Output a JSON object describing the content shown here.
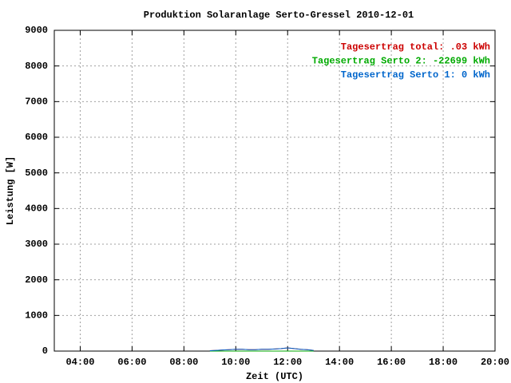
{
  "chart_data": {
    "type": "line",
    "title": "Produktion Solaranlage Serto-Gressel 2010-12-01",
    "x_label": "Zeit (UTC)",
    "y_label": "Leistung [W]",
    "x": [
      9,
      9.25,
      9.5,
      9.75,
      10,
      10.25,
      10.5,
      10.75,
      11,
      11.25,
      11.5,
      11.75,
      12,
      12.25,
      12.5,
      12.75,
      13
    ],
    "series": [
      {
        "name": "Tagesertrag total: .03 kWh",
        "color": "#cc0000",
        "values": [
          10,
          20,
          30,
          40,
          50,
          50,
          40,
          40,
          50,
          50,
          60,
          70,
          90,
          70,
          50,
          40,
          20
        ]
      },
      {
        "name": "Tagesertrag Serto 2: -22699 kWh",
        "color": "#00aa00",
        "values": [
          0,
          0,
          0,
          0,
          0,
          0,
          0,
          0,
          0,
          0,
          0,
          0,
          0,
          0,
          0,
          0,
          0
        ]
      },
      {
        "name": "Tagesertrag Serto 1: 0 kWh",
        "color": "#0066cc",
        "values": [
          10,
          20,
          30,
          40,
          50,
          50,
          40,
          40,
          50,
          50,
          60,
          70,
          90,
          70,
          50,
          40,
          20
        ]
      }
    ],
    "xlim": [
      3,
      20
    ],
    "xticks": [
      {
        "value": 4,
        "label": "04:00"
      },
      {
        "value": 6,
        "label": "06:00"
      },
      {
        "value": 8,
        "label": "08:00"
      },
      {
        "value": 10,
        "label": "10:00"
      },
      {
        "value": 12,
        "label": "12:00"
      },
      {
        "value": 14,
        "label": "14:00"
      },
      {
        "value": 16,
        "label": "16:00"
      },
      {
        "value": 18,
        "label": "18:00"
      },
      {
        "value": 20,
        "label": "20:00"
      }
    ],
    "ylim": [
      0,
      9000
    ],
    "yticks": [
      0,
      1000,
      2000,
      3000,
      4000,
      5000,
      6000,
      7000,
      8000,
      9000
    ],
    "grid": true,
    "legend": "top-right"
  }
}
